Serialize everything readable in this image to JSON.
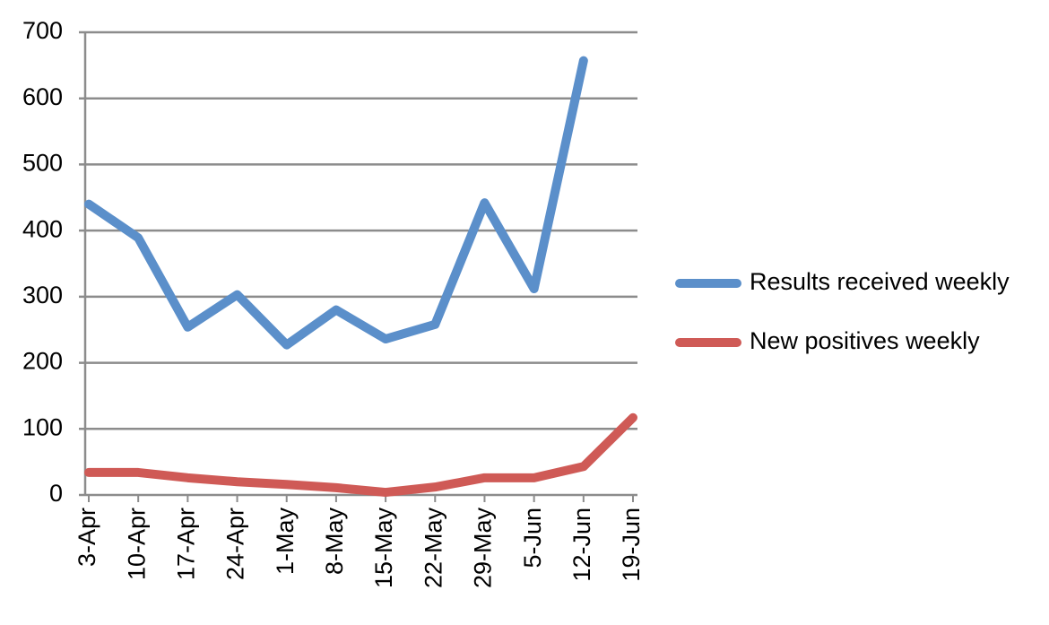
{
  "chart_data": {
    "type": "line",
    "categories": [
      "3-Apr",
      "10-Apr",
      "17-Apr",
      "24-Apr",
      "1-May",
      "8-May",
      "15-May",
      "22-May",
      "29-May",
      "5-Jun",
      "12-Jun",
      "19-Jun"
    ],
    "series": [
      {
        "name": "Results received weekly",
        "color": "#5b8fca",
        "values": [
          440,
          389,
          254,
          303,
          227,
          280,
          236,
          258,
          442,
          312,
          657,
          null
        ]
      },
      {
        "name": "New positives weekly",
        "color": "#cf5a56",
        "values": [
          34,
          34,
          26,
          20,
          16,
          11,
          4,
          12,
          26,
          26,
          43,
          117
        ]
      }
    ],
    "ylim": [
      0,
      700
    ],
    "yticks": [
      0,
      100,
      200,
      300,
      400,
      500,
      600,
      700
    ],
    "grid": true,
    "legend": "right"
  }
}
